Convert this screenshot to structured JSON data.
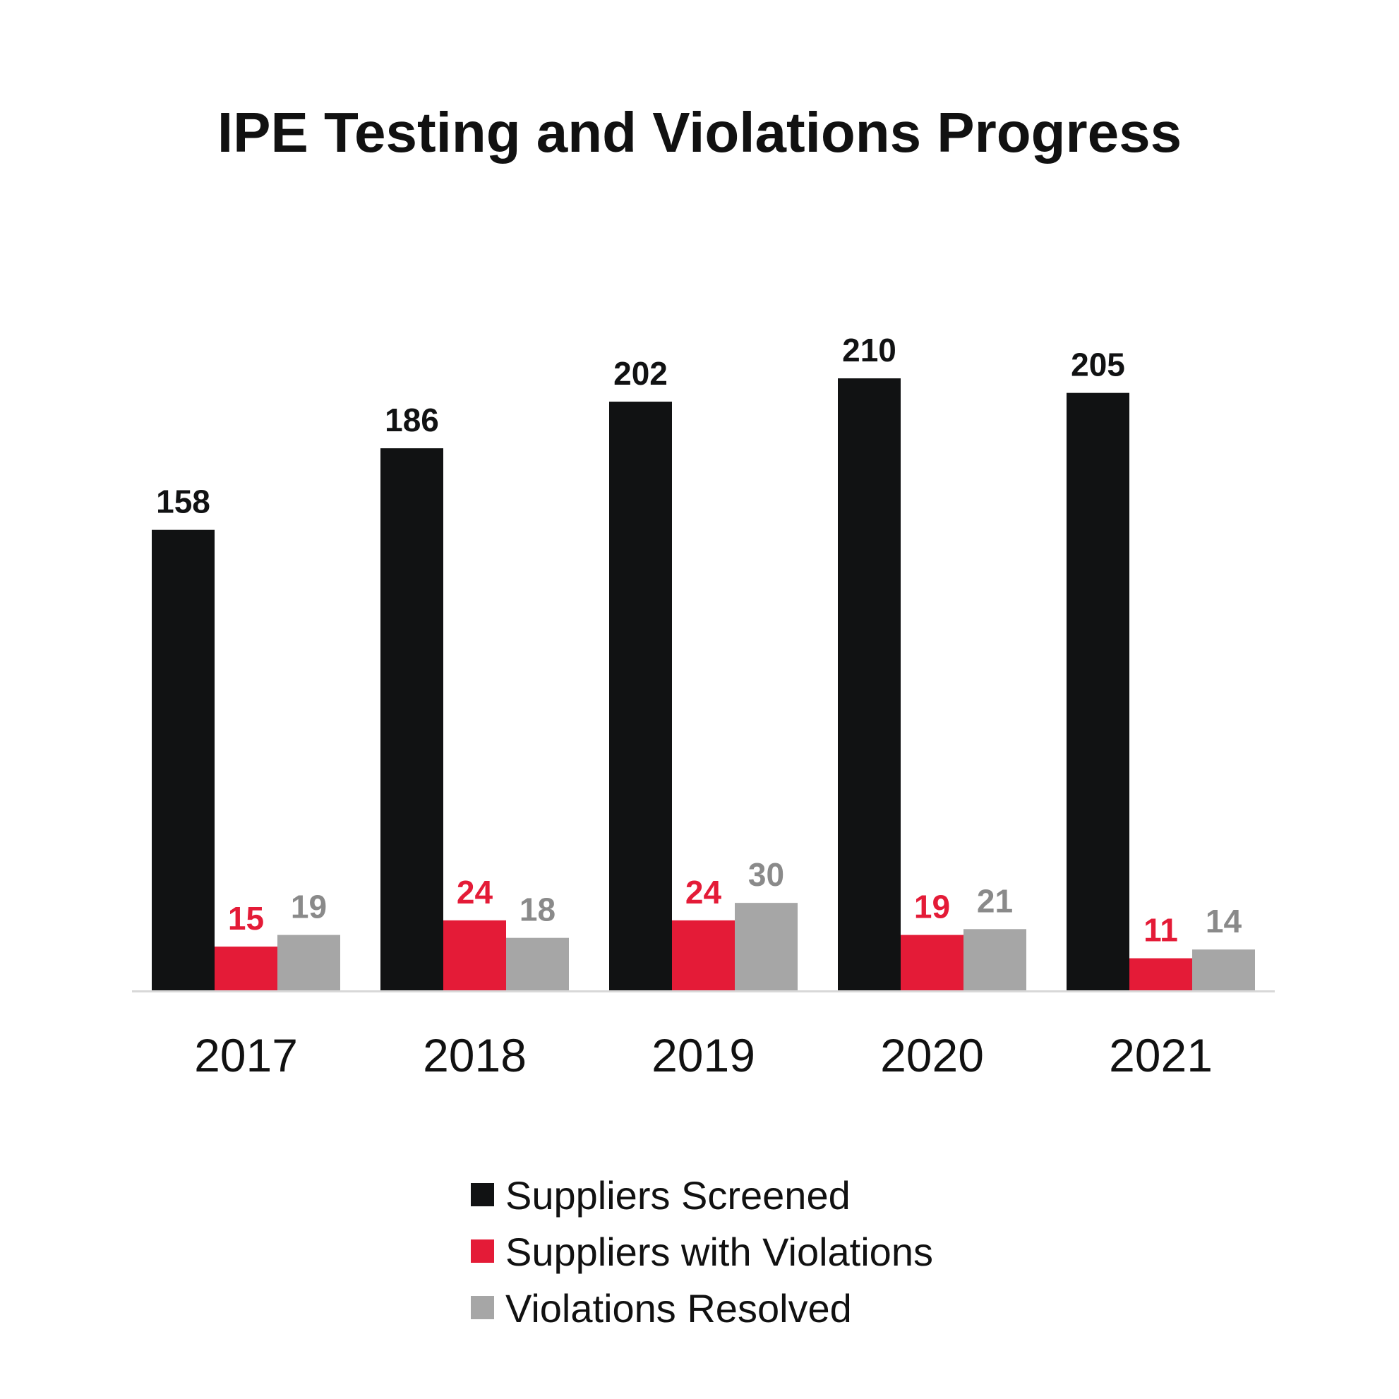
{
  "chart_data": {
    "type": "bar",
    "title": "IPE Testing and Violations Progress",
    "categories": [
      "2017",
      "2018",
      "2019",
      "2020",
      "2021"
    ],
    "series": [
      {
        "name": "Suppliers Screened",
        "color": "#111213",
        "label_color": "#111213",
        "values": [
          158,
          186,
          202,
          210,
          205
        ]
      },
      {
        "name": "Suppliers with Violations",
        "color": "#E41B37",
        "label_color": "#E41B37",
        "values": [
          15,
          24,
          24,
          19,
          11
        ]
      },
      {
        "name": "Violations Resolved",
        "color": "#A6A6A6",
        "label_color": "#8A8A8A",
        "values": [
          19,
          18,
          30,
          21,
          14
        ]
      }
    ],
    "ylim": [
      0,
      210
    ],
    "grid": false,
    "legend_position": "bottom"
  }
}
